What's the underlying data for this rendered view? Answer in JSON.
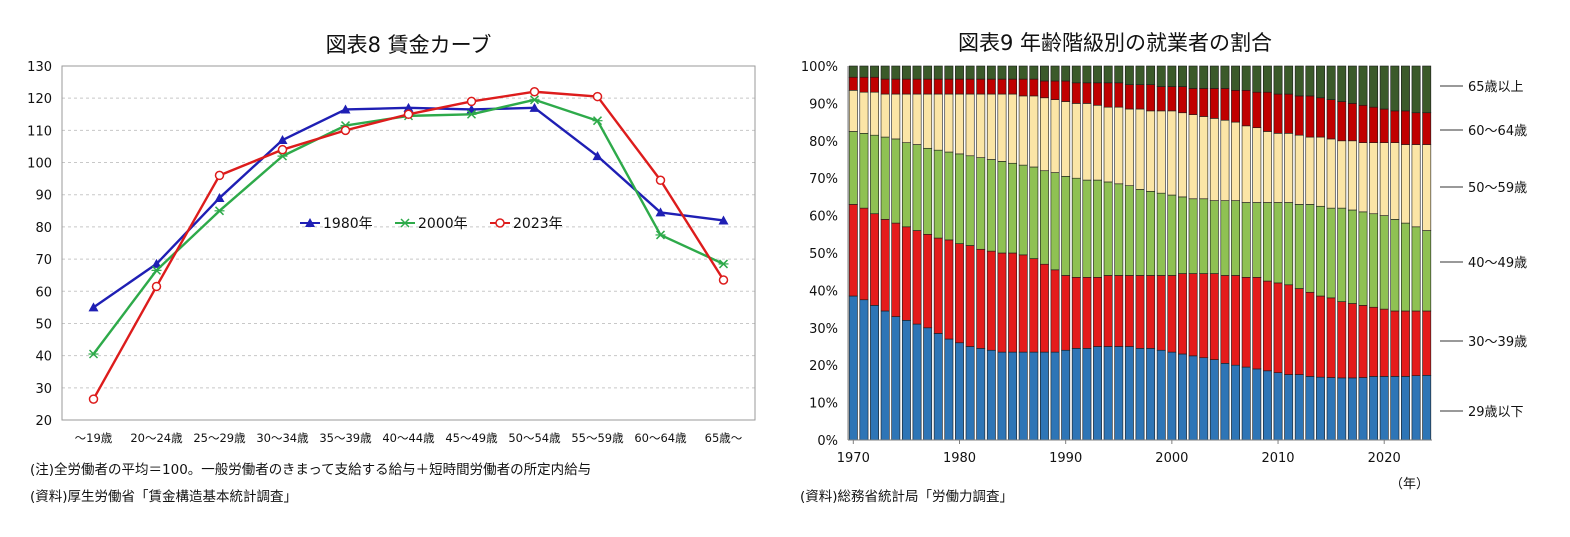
{
  "left_chart": {
    "title": "図表8 賃金カーブ",
    "note": "(注)全労働者の平均＝100。一般労働者のきまって支給する給与＋短時間労働者の所定内給与",
    "source": "(資料)厚生労働省「賃金構造基本統計調査」"
  },
  "right_chart": {
    "title": "図表9 年齢階級別の就業者の割合",
    "x_unit": "（年）",
    "source": "(資料)総務省統計局「労働力調査」"
  },
  "chart_data": [
    {
      "type": "line",
      "title": "図表8 賃金カーブ",
      "categories": [
        "～19歳",
        "20～24歳",
        "25～29歳",
        "30～34歳",
        "35～39歳",
        "40～44歳",
        "45～49歳",
        "50～54歳",
        "55～59歳",
        "60～64歳",
        "65歳～"
      ],
      "ylim": [
        20,
        130
      ],
      "yticks": [
        20,
        30,
        40,
        50,
        60,
        70,
        80,
        90,
        100,
        110,
        120,
        130
      ],
      "grid": true,
      "legend": "center",
      "series": [
        {
          "name": "1980年",
          "color": "#1f1fb4",
          "marker": "triangle",
          "values": [
            55,
            68.5,
            89,
            107,
            116.5,
            117,
            116.5,
            117,
            102,
            84.5,
            82
          ]
        },
        {
          "name": "2000年",
          "color": "#2eaa4a",
          "marker": "x",
          "values": [
            40.5,
            66.5,
            85,
            102,
            111.5,
            114.5,
            115,
            119.5,
            113,
            77.5,
            68.5
          ]
        },
        {
          "name": "2023年",
          "color": "#dd1c1c",
          "marker": "circle",
          "values": [
            26.5,
            61.5,
            96,
            104,
            110,
            115,
            119,
            122,
            120.5,
            94.5,
            63.5
          ]
        }
      ]
    },
    {
      "type": "bar",
      "stacked": true,
      "title": "図表9 年齢階級別の就業者の割合",
      "years_start": 1970,
      "years_end": 2024,
      "xticks": [
        1970,
        1980,
        1990,
        2000,
        2010,
        2020
      ],
      "ylim": [
        0,
        100
      ],
      "yticks": [
        "0%",
        "10%",
        "20%",
        "30%",
        "40%",
        "50%",
        "60%",
        "70%",
        "80%",
        "90%",
        "100%"
      ],
      "legend": "right",
      "series": [
        {
          "name": "29歳以下",
          "color": "#2e75b6",
          "cumulative_top": [
            38.5,
            37.5,
            36,
            34.5,
            33,
            32,
            31,
            30,
            28.5,
            27,
            26,
            25,
            24.5,
            24,
            23.5,
            23.5,
            23.5,
            23.5,
            23.5,
            23.5,
            24,
            24.5,
            24.5,
            25,
            25,
            25,
            25,
            24.5,
            24.5,
            24,
            23.5,
            23,
            22.5,
            22,
            21.5,
            20.5,
            20,
            19.5,
            19,
            18.5,
            18,
            17.5,
            17.5,
            17,
            16.8,
            16.7,
            16.6,
            16.6,
            16.7,
            17,
            17,
            17,
            17,
            17.2,
            17.3
          ]
        },
        {
          "name": "30～39歳",
          "color": "#e41b1b",
          "cumulative_top": [
            63,
            62,
            60.5,
            59,
            58,
            57,
            56,
            55,
            54,
            53.5,
            52.5,
            52,
            51,
            50.5,
            50,
            50,
            49.5,
            48.5,
            47,
            45.5,
            44,
            43.5,
            43.5,
            43.5,
            44,
            44,
            44,
            44,
            44,
            44,
            44,
            44.5,
            44.5,
            44.5,
            44.5,
            44,
            44,
            43.5,
            43.5,
            42.5,
            42,
            41.5,
            40.5,
            39.5,
            38.5,
            38,
            37,
            36.5,
            36,
            35.5,
            35,
            34.5,
            34.5,
            34.5,
            34.5
          ]
        },
        {
          "name": "40～49歳",
          "color": "#8fc153",
          "cumulative_top": [
            82.5,
            82,
            81.5,
            81,
            80.5,
            79.5,
            79,
            78,
            77.5,
            77,
            76.5,
            76,
            75.5,
            75,
            74.5,
            74,
            73.5,
            73,
            72,
            71.5,
            70.5,
            70,
            69.5,
            69.5,
            69,
            68.5,
            68,
            67,
            66.5,
            66,
            65.5,
            65,
            64.5,
            64.5,
            64,
            64,
            64,
            63.5,
            63.5,
            63.5,
            63.5,
            63.5,
            63,
            63,
            62.5,
            62,
            62,
            61.5,
            61,
            60.5,
            60,
            59,
            58,
            57,
            56
          ]
        },
        {
          "name": "50～59歳",
          "color": "#fbe5a6",
          "cumulative_top": [
            93.5,
            93,
            93,
            92.5,
            92.5,
            92.5,
            92.5,
            92.5,
            92.5,
            92.5,
            92.5,
            92.5,
            92.5,
            92.5,
            92.5,
            92.5,
            92,
            92,
            91.5,
            91,
            90.5,
            90,
            90,
            89.5,
            89,
            89,
            88.5,
            88.5,
            88,
            88,
            88,
            87.5,
            87,
            86.5,
            86,
            85.5,
            85,
            84,
            83.5,
            82.5,
            82,
            82,
            81.5,
            81,
            81,
            80.5,
            80,
            80,
            79.5,
            79.5,
            79.5,
            79.5,
            79,
            79,
            79
          ]
        },
        {
          "name": "60～64歳",
          "color": "#c00000",
          "cumulative_top": [
            97,
            97,
            97,
            96.5,
            96.5,
            96.5,
            96.5,
            96.5,
            96.5,
            96.5,
            96.5,
            96.5,
            96.5,
            96.5,
            96.5,
            96.5,
            96.5,
            96.5,
            96,
            96,
            96,
            95.5,
            95.5,
            95.5,
            95.5,
            95.5,
            95,
            95,
            95,
            94.5,
            94.5,
            94.5,
            94,
            94,
            94,
            94,
            93.5,
            93.5,
            93,
            93,
            92.5,
            92.5,
            92,
            92,
            91.5,
            91,
            90.5,
            90,
            89.5,
            89,
            88.5,
            88,
            88,
            87.5,
            87.5
          ]
        },
        {
          "name": "65歳以上",
          "color": "#3b5a2a",
          "cumulative_top": [
            100,
            100,
            100,
            100,
            100,
            100,
            100,
            100,
            100,
            100,
            100,
            100,
            100,
            100,
            100,
            100,
            100,
            100,
            100,
            100,
            100,
            100,
            100,
            100,
            100,
            100,
            100,
            100,
            100,
            100,
            100,
            100,
            100,
            100,
            100,
            100,
            100,
            100,
            100,
            100,
            100,
            100,
            100,
            100,
            100,
            100,
            100,
            100,
            100,
            100,
            100,
            100,
            100,
            100,
            100
          ]
        }
      ]
    }
  ]
}
